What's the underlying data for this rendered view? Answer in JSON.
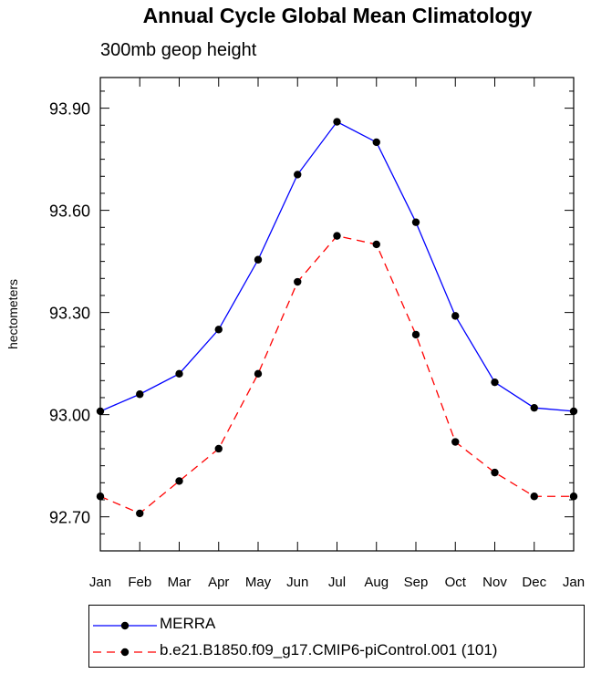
{
  "chart_data": {
    "type": "line",
    "title": "Annual Cycle Global Mean Climatology",
    "subtitle": "300mb geop height",
    "xlabel": "",
    "ylabel": "hectometers",
    "categories": [
      "Jan",
      "Feb",
      "Mar",
      "Apr",
      "May",
      "Jun",
      "Jul",
      "Aug",
      "Sep",
      "Oct",
      "Nov",
      "Dec",
      "Jan"
    ],
    "ylim": [
      92.6,
      93.99
    ],
    "yticks": [
      92.7,
      93.0,
      93.3,
      93.6,
      93.9
    ],
    "ytick_labels": [
      "92.70",
      "93.00",
      "93.30",
      "93.60",
      "93.90"
    ],
    "yminor_step": 0.05,
    "grid": false,
    "legend_position": "bottom",
    "series": [
      {
        "name": "MERRA",
        "color": "#0000ff",
        "dash": "solid",
        "marker": "filled-circle",
        "values": [
          93.01,
          93.06,
          93.12,
          93.25,
          93.455,
          93.705,
          93.86,
          93.8,
          93.565,
          93.29,
          93.095,
          93.02,
          93.01
        ]
      },
      {
        "name": "b.e21.B1850.f09_g17.CMIP6-piControl.001 (101)",
        "color": "#ff0000",
        "dash": "dashed",
        "marker": "filled-circle",
        "values": [
          92.76,
          92.71,
          92.805,
          92.9,
          93.12,
          93.39,
          93.525,
          93.5,
          93.235,
          92.92,
          92.83,
          92.76,
          92.76
        ]
      }
    ]
  }
}
